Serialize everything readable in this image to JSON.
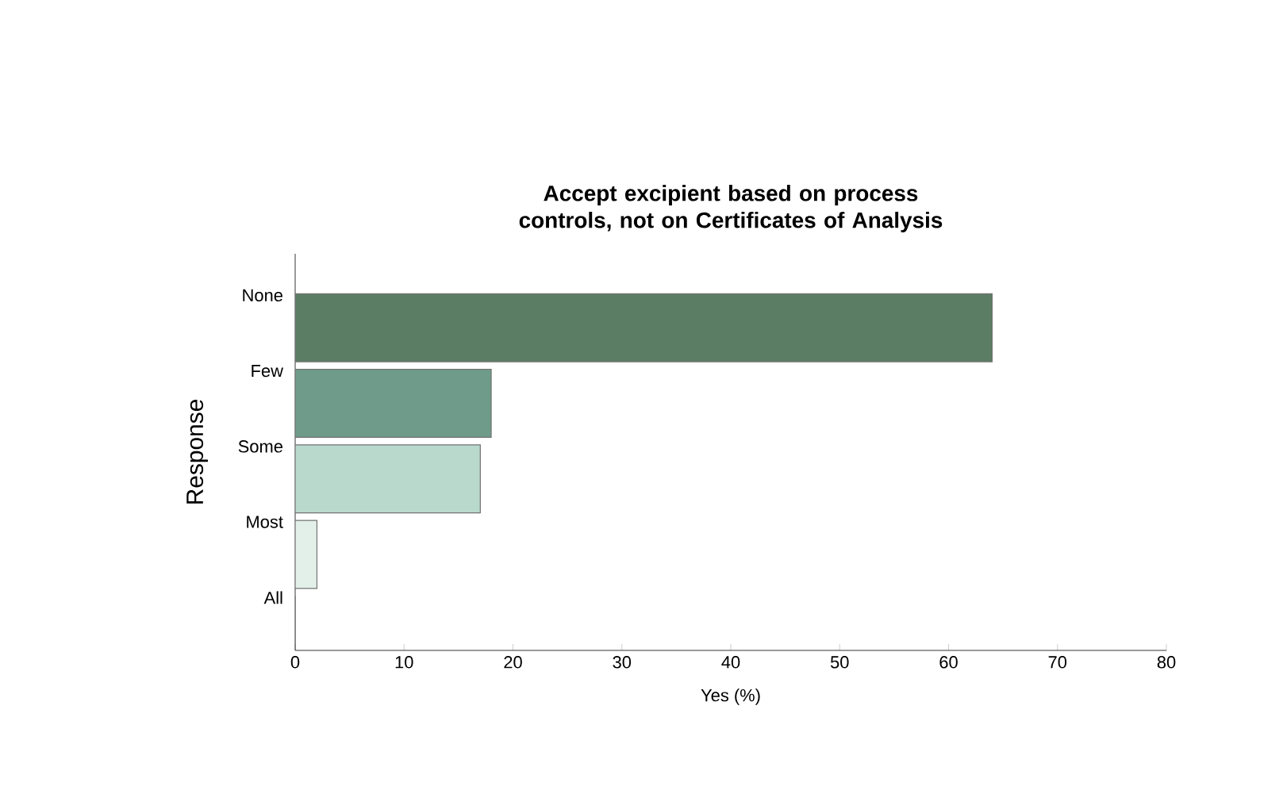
{
  "chart_data": {
    "type": "bar",
    "orientation": "horizontal",
    "title": "Accept excipient based on process controls, not on Certificates of Analysis",
    "xlabel": "Yes (%)",
    "ylabel": "Response",
    "categories": [
      "None",
      "Few",
      "Some",
      "Most",
      "All"
    ],
    "values": [
      64,
      18,
      17,
      2,
      0
    ],
    "colors": [
      "#5b7d64",
      "#6f9c8a",
      "#b9d9cd",
      "#e3f0e9",
      "#e3f0e9"
    ],
    "xlim": [
      0,
      80
    ],
    "xticks": [
      0,
      10,
      20,
      30,
      40,
      50,
      60,
      70,
      80
    ],
    "grid": false
  }
}
